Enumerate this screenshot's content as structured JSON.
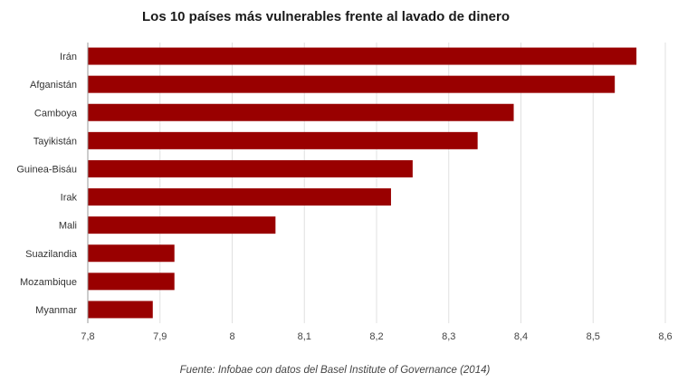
{
  "chart_data": {
    "type": "bar",
    "orientation": "horizontal",
    "title": "Los 10 países más vulnerables frente al lavado de dinero",
    "source": "Fuente: Infobae con datos del Basel Institute of Governance (2014)",
    "categories": [
      "Irán",
      "Afganistán",
      "Camboya",
      "Tayikistán",
      "Guinea-Bisáu",
      "Irak",
      "Mali",
      "Suazilandia",
      "Mozambique",
      "Myanmar"
    ],
    "values": [
      8.56,
      8.53,
      8.39,
      8.34,
      8.25,
      8.22,
      8.06,
      7.92,
      7.92,
      7.89
    ],
    "xlim": [
      7.8,
      8.6
    ],
    "ticks": [
      7.8,
      7.9,
      8.0,
      8.1,
      8.2,
      8.3,
      8.4,
      8.5,
      8.6
    ],
    "tick_labels": [
      "7,8",
      "7,9",
      "8",
      "8,1",
      "8,2",
      "8,3",
      "8,4",
      "8,5",
      "8,6"
    ],
    "bar_color": "#990000",
    "grid": true
  }
}
